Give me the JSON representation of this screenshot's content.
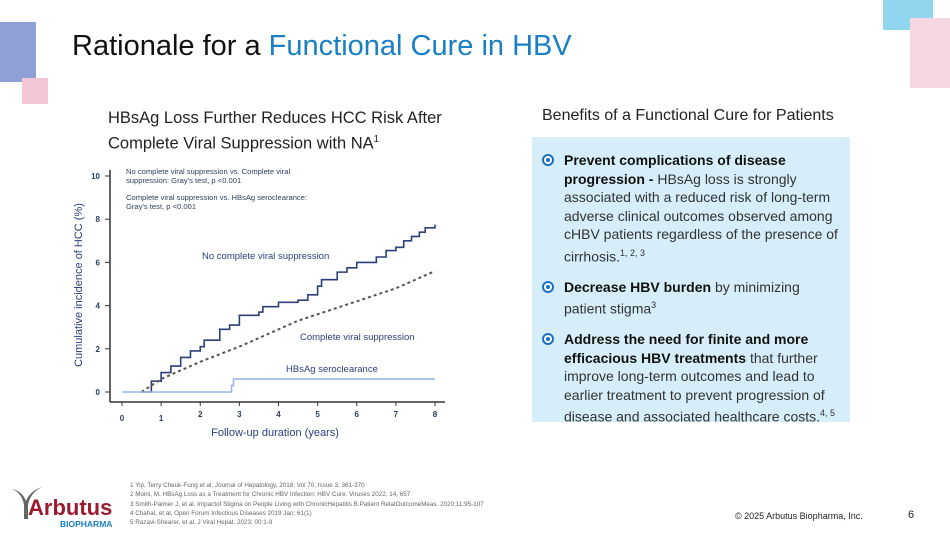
{
  "title": {
    "prefix": "Rationale for a ",
    "accent": "Functional Cure in HBV"
  },
  "chart_heading": {
    "line1": "HBsAg Loss Further Reduces HCC Risk After",
    "line2": "Complete Viral Suppression with NA",
    "sup": "1"
  },
  "chart_data": {
    "type": "line",
    "xlabel": "Follow-up duration (years)",
    "ylabel": "Cumulative incidence of HCC (%)",
    "xlim": [
      0,
      8
    ],
    "ylim": [
      0,
      10
    ],
    "xticks": [
      "0",
      "1",
      "2",
      "3",
      "4",
      "5",
      "6",
      "7",
      "8"
    ],
    "yticks": [
      "0",
      "2",
      "4",
      "6",
      "8",
      "10"
    ],
    "grid": false,
    "annotations": [
      "No complete viral suppression vs. Complete viral",
      "suppression: Gray's test, p <0.001",
      "Complete viral suppression vs. HBsAg seroclearance:",
      "Gray's test, p <0.001"
    ],
    "series": [
      {
        "name": "No complete viral suppression",
        "color": "#2c3f7a",
        "style": "solid-step",
        "x": [
          0.5,
          0.75,
          1,
          1.25,
          1.5,
          1.75,
          2,
          2.1,
          2.5,
          2.75,
          3,
          3.5,
          3.6,
          4,
          4.5,
          4.75,
          5,
          5.1,
          5.5,
          5.75,
          6,
          6.5,
          6.75,
          7,
          7.2,
          7.4,
          7.6,
          7.75,
          8
        ],
        "y": [
          0,
          0.5,
          0.9,
          1.2,
          1.6,
          1.9,
          2.1,
          2.4,
          2.9,
          3.1,
          3.55,
          3.7,
          3.95,
          4.15,
          4.25,
          4.5,
          4.9,
          5.2,
          5.55,
          5.75,
          6.0,
          6.25,
          6.55,
          6.7,
          7.0,
          7.2,
          7.4,
          7.6,
          7.75
        ]
      },
      {
        "name": "Complete viral suppression",
        "color": "#555555",
        "style": "dashed",
        "x": [
          0.5,
          1,
          2,
          3,
          4,
          4.5,
          5,
          6,
          7,
          8
        ],
        "y": [
          0,
          0.6,
          1.4,
          2.1,
          2.9,
          3.3,
          3.6,
          4.2,
          4.8,
          5.6
        ]
      },
      {
        "name": "HBsAg seroclearance",
        "color": "#9fb6e8",
        "style": "solid-step",
        "x": [
          0,
          2.75,
          2.8,
          2.85,
          8
        ],
        "y": [
          0,
          0,
          0.3,
          0.6,
          0.6
        ]
      }
    ]
  },
  "benefits": {
    "heading": "Benefits of a Functional Cure for Patients",
    "items": [
      {
        "bold": "Prevent complications of disease progression - ",
        "text": "HBsAg loss is strongly associated with a reduced risk of long-term adverse clinical outcomes observed among cHBV patients regardless of the presence of cirrhosis.",
        "sup": "1, 2, 3"
      },
      {
        "bold": "Decrease HBV burden",
        "text": " by minimizing patient stigma",
        "sup": "3"
      },
      {
        "bold": "Address the need for finite and more efficacious HBV treatments",
        "text": " that further improve long-term outcomes and lead to earlier treatment to prevent progression of disease and associated healthcare costs.",
        "sup": "4, 5"
      }
    ]
  },
  "references": [
    "1 Yip, Terry Cheuk-Fung et al, Journal of Hepatology, 2018; Vol 70, Issue 3, 361-370",
    "2 Moini, M. HBsAg Loss as a Treatment for Chronic HBV Infection:  HBV Cure. Viruses 2022, 14, 657",
    "3 Smith-Palmer J, et al. Impactof Stigma on People Living with ChronicHepatitis B.Patient RelatOutcomeMeas. 2020;11:95-107",
    "4 Chahal, et al, Open Forum Infectious Diseases 2019 Jan; 61(1)",
    "5 Razavi-Shearer, et al, J Viral Hepat. 2023; 00:1-9"
  ],
  "logo": {
    "name": "Arbutus",
    "sub": "BIOPHARMA"
  },
  "footer": {
    "copyright": "© 2025 Arbutus Biopharma, Inc.",
    "page": "6"
  },
  "colors": {
    "accent": "#1a7fc4",
    "box": "#d5eefa",
    "logo_red": "#9b1b30",
    "logo_blue": "#1a7fc4"
  }
}
